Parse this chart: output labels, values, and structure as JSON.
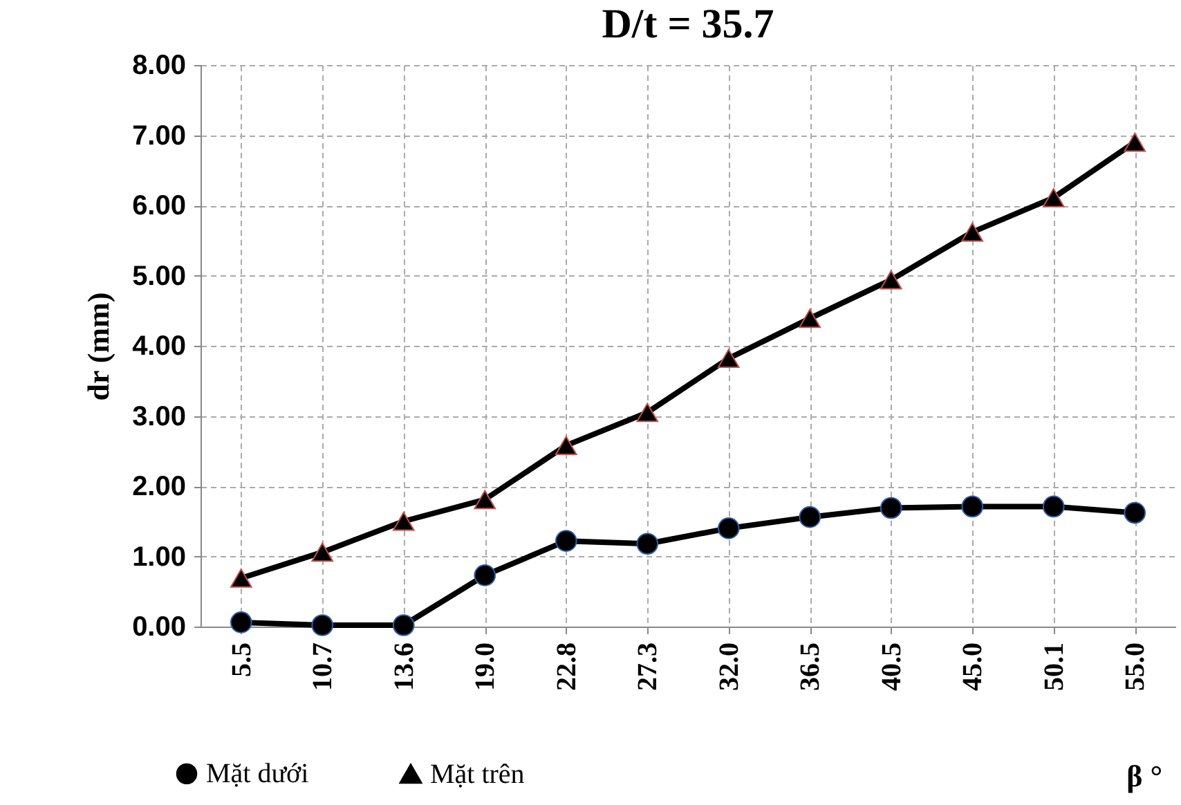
{
  "chart_data": {
    "type": "line",
    "title": "D/t = 35.7",
    "xlabel": "β °",
    "ylabel": "dr (mm)",
    "categories": [
      "5.5",
      "10.7",
      "13.6",
      "19.0",
      "22.8",
      "27.3",
      "32.0",
      "36.5",
      "40.5",
      "45.0",
      "50.1",
      "55.0"
    ],
    "series": [
      {
        "name": "Mặt dưới",
        "color": "#000000",
        "marker": "circle",
        "values": [
          0.06,
          0.02,
          0.02,
          0.73,
          1.22,
          1.18,
          1.4,
          1.56,
          1.69,
          1.71,
          1.71,
          1.62
        ]
      },
      {
        "name": "Mặt trên",
        "color": "#000000",
        "marker": "triangle",
        "values": [
          0.69,
          1.06,
          1.5,
          1.81,
          2.58,
          3.05,
          3.82,
          4.39,
          4.94,
          5.62,
          6.11,
          6.9
        ]
      }
    ],
    "ylim": [
      0,
      8
    ],
    "yticks": [
      {
        "value": 0,
        "label": "0.00"
      },
      {
        "value": 1,
        "label": "1.00"
      },
      {
        "value": 2,
        "label": "2.00"
      },
      {
        "value": 3,
        "label": "3.00"
      },
      {
        "value": 4,
        "label": "4.00"
      },
      {
        "value": 5,
        "label": "5.00"
      },
      {
        "value": 6,
        "label": "6.00"
      },
      {
        "value": 7,
        "label": "7.00"
      },
      {
        "value": 8,
        "label": "8.00"
      }
    ],
    "grid": true,
    "legend": "bottom left",
    "line_style": "solid"
  }
}
